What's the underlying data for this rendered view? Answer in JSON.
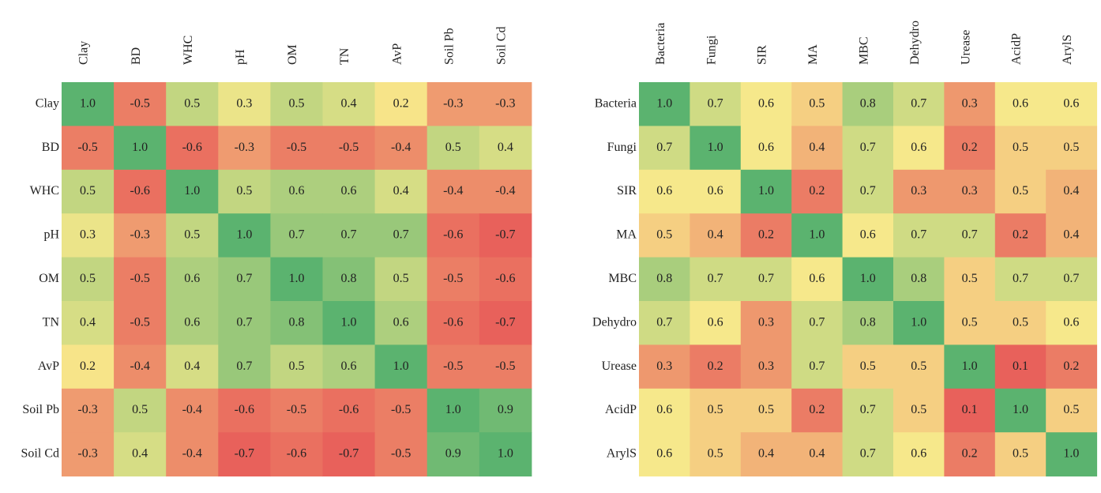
{
  "chart_data": [
    {
      "type": "heatmap",
      "rows": [
        "Clay",
        "BD",
        "WHC",
        "pH",
        "OM",
        "TN",
        "AvP",
        "Soil Pb",
        "Soil Cd"
      ],
      "columns": [
        "Clay",
        "BD",
        "WHC",
        "pH",
        "OM",
        "TN",
        "AvP",
        "Soil Pb",
        "Soil Cd"
      ],
      "values": [
        [
          1,
          -0.5,
          0.5,
          0.3,
          0.5,
          0.4,
          0.2,
          -0.3,
          -0.3
        ],
        [
          -0.5,
          1,
          -0.6,
          -0.3,
          -0.5,
          -0.5,
          -0.4,
          0.5,
          0.4
        ],
        [
          0.5,
          -0.6,
          1,
          0.5,
          0.6,
          0.6,
          0.4,
          -0.4,
          -0.4
        ],
        [
          0.3,
          -0.3,
          0.5,
          1,
          0.7,
          0.7,
          0.7,
          -0.6,
          -0.7
        ],
        [
          0.5,
          -0.5,
          0.6,
          0.7,
          1,
          0.8,
          0.5,
          -0.5,
          -0.6
        ],
        [
          0.4,
          -0.5,
          0.6,
          0.7,
          0.8,
          1,
          0.6,
          -0.6,
          -0.7
        ],
        [
          0.2,
          -0.4,
          0.4,
          0.7,
          0.5,
          0.6,
          1,
          -0.5,
          -0.5
        ],
        [
          -0.3,
          0.5,
          -0.4,
          -0.6,
          -0.5,
          -0.6,
          -0.5,
          1,
          0.9
        ],
        [
          -0.3,
          0.4,
          -0.4,
          -0.7,
          -0.6,
          -0.7,
          -0.5,
          0.9,
          1
        ]
      ],
      "value_labels": [
        [
          "1.0",
          "-0.5",
          "0.5",
          "0.3",
          "0.5",
          "0.4",
          "0.2",
          "-0.3",
          "-0.3"
        ],
        [
          "-0.5",
          "1.0",
          "-0.6",
          "-0.3",
          "-0.5",
          "-0.5",
          "-0.4",
          "0.5",
          "0.4"
        ],
        [
          "0.5",
          "-0.6",
          "1.0",
          "0.5",
          "0.6",
          "0.6",
          "0.4",
          "-0.4",
          "-0.4"
        ],
        [
          "0.3",
          "-0.3",
          "0.5",
          "1.0",
          "0.7",
          "0.7",
          "0.7",
          "-0.6",
          "-0.7"
        ],
        [
          "0.5",
          "-0.5",
          "0.6",
          "0.7",
          "1.0",
          "0.8",
          "0.5",
          "-0.5",
          "-0.6"
        ],
        [
          "0.4",
          "-0.5",
          "0.6",
          "0.7",
          "0.8",
          "1.0",
          "0.6",
          "-0.6",
          "-0.7"
        ],
        [
          "0.2",
          "-0.4",
          "0.4",
          "0.7",
          "0.5",
          "0.6",
          "1.0",
          "-0.5",
          "-0.5"
        ],
        [
          "-0.3",
          "0.5",
          "-0.4",
          "-0.6",
          "-0.5",
          "-0.6",
          "-0.5",
          "1.0",
          "0.9"
        ],
        [
          "-0.3",
          "0.4",
          "-0.4",
          "-0.7",
          "-0.6",
          "-0.7",
          "-0.5",
          "0.9",
          "1.0"
        ]
      ],
      "colors": [
        "#e8615b",
        "#f8e98b",
        "#5bb36f"
      ]
    },
    {
      "type": "heatmap",
      "rows": [
        "Bacteria",
        "Fungi",
        "SIR",
        "MA",
        "MBC",
        "Dehydro",
        "Urease",
        "AcidP",
        "ArylS"
      ],
      "columns": [
        "Bacteria",
        "Fungi",
        "SIR",
        "MA",
        "MBC",
        "Dehydro",
        "Urease",
        "AcidP",
        "ArylS"
      ],
      "values": [
        [
          1,
          0.7,
          0.6,
          0.5,
          0.8,
          0.7,
          0.3,
          0.6,
          0.6
        ],
        [
          0.7,
          1,
          0.6,
          0.4,
          0.7,
          0.6,
          0.2,
          0.5,
          0.5
        ],
        [
          0.6,
          0.6,
          1,
          0.2,
          0.7,
          0.3,
          0.3,
          0.5,
          0.4
        ],
        [
          0.5,
          0.4,
          0.2,
          1,
          0.6,
          0.7,
          0.7,
          0.2,
          0.4
        ],
        [
          0.8,
          0.7,
          0.7,
          0.6,
          1,
          0.8,
          0.5,
          0.7,
          0.7
        ],
        [
          0.7,
          0.6,
          0.3,
          0.7,
          0.8,
          1,
          0.5,
          0.5,
          0.6
        ],
        [
          0.3,
          0.2,
          0.3,
          0.7,
          0.5,
          0.5,
          1,
          0.1,
          0.2
        ],
        [
          0.6,
          0.5,
          0.5,
          0.2,
          0.7,
          0.5,
          0.1,
          1,
          0.5
        ],
        [
          0.6,
          0.5,
          0.4,
          0.4,
          0.7,
          0.6,
          0.2,
          0.5,
          1
        ]
      ],
      "value_labels": [
        [
          "1.0",
          "0.7",
          "0.6",
          "0.5",
          "0.8",
          "0.7",
          "0.3",
          "0.6",
          "0.6"
        ],
        [
          "0.7",
          "1.0",
          "0.6",
          "0.4",
          "0.7",
          "0.6",
          "0.2",
          "0.5",
          "0.5"
        ],
        [
          "0.6",
          "0.6",
          "1.0",
          "0.2",
          "0.7",
          "0.3",
          "0.3",
          "0.5",
          "0.4"
        ],
        [
          "0.5",
          "0.4",
          "0.2",
          "1.0",
          "0.6",
          "0.7",
          "0.7",
          "0.2",
          "0.4"
        ],
        [
          "0.8",
          "0.7",
          "0.7",
          "0.6",
          "1.0",
          "0.8",
          "0.5",
          "0.7",
          "0.7"
        ],
        [
          "0.7",
          "0.6",
          "0.3",
          "0.7",
          "0.8",
          "1.0",
          "0.5",
          "0.5",
          "0.6"
        ],
        [
          "0.3",
          "0.2",
          "0.3",
          "0.7",
          "0.5",
          "0.5",
          "1.0",
          "0.1",
          "0.2"
        ],
        [
          "0.6",
          "0.5",
          "0.5",
          "0.2",
          "0.7",
          "0.5",
          "0.1",
          "1.0",
          "0.5"
        ],
        [
          "0.6",
          "0.5",
          "0.4",
          "0.4",
          "0.7",
          "0.6",
          "0.2",
          "0.5",
          "1.0"
        ]
      ],
      "colors": [
        "#e8615b",
        "#f8e98b",
        "#5bb36f"
      ]
    }
  ]
}
